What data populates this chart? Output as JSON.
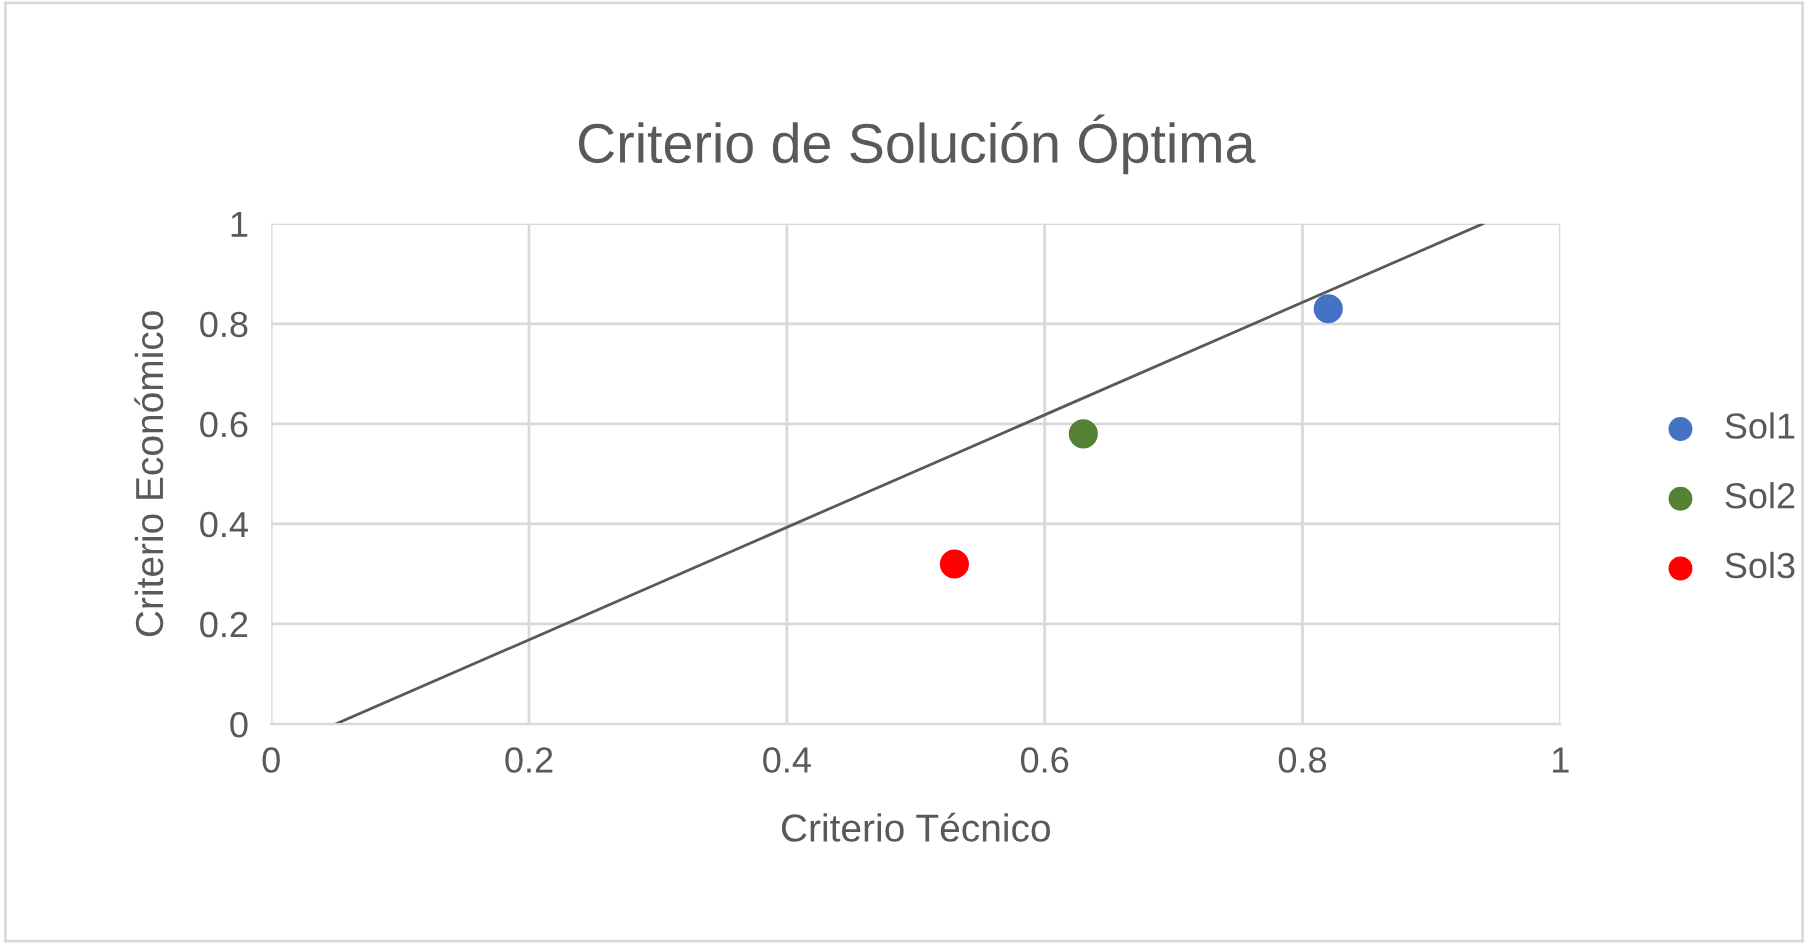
{
  "chart_data": {
    "type": "scatter",
    "title": "Criterio de Solución Óptima",
    "xlabel": "Criterio Técnico",
    "ylabel": "Criterio Económico",
    "xlim": [
      0,
      1
    ],
    "ylim": [
      0,
      1
    ],
    "xticks": [
      0,
      0.2,
      0.4,
      0.6,
      0.8,
      1
    ],
    "yticks": [
      0,
      0.2,
      0.4,
      0.6,
      0.8,
      1
    ],
    "grid": true,
    "legend": "right",
    "marker": "circle",
    "series": [
      {
        "name": "Sol1",
        "color": "#4472c4",
        "x": [
          0.82
        ],
        "values": [
          0.83
        ]
      },
      {
        "name": "Sol2",
        "color": "#548235",
        "x": [
          0.63
        ],
        "values": [
          0.58
        ]
      },
      {
        "name": "Sol3",
        "color": "#ff0000",
        "x": [
          0.53
        ],
        "values": [
          0.32
        ]
      },
      {
        "type": "line",
        "marker": "none",
        "color": "#595959",
        "x": [
          0.05,
          0.94
        ],
        "values": [
          0,
          1
        ]
      }
    ]
  }
}
